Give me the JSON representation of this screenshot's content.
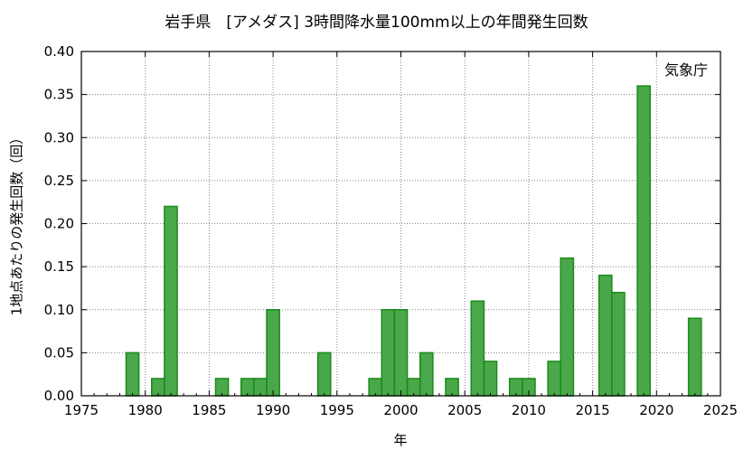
{
  "chart_data": {
    "type": "bar",
    "title": "岩手県　[アメダス] 3時間降水量100mm以上の年間発生回数",
    "xlabel": "年",
    "ylabel": "1地点あたりの発生回数（回）",
    "source_label": "気象庁",
    "xlim": [
      1975,
      2025
    ],
    "ylim": [
      0,
      0.4
    ],
    "x_ticks": [
      1975,
      1980,
      1985,
      1990,
      1995,
      2000,
      2005,
      2010,
      2015,
      2020,
      2025
    ],
    "y_ticks": [
      "0.00",
      "0.05",
      "0.10",
      "0.15",
      "0.20",
      "0.25",
      "0.30",
      "0.35",
      "0.40"
    ],
    "grid": true,
    "bar_color": "#4aa84a",
    "bar_edge_color": "#1a8a1a",
    "x": [
      1979,
      1981,
      1982,
      1986,
      1988,
      1989,
      1990,
      1994,
      1998,
      1999,
      2000,
      2001,
      2002,
      2004,
      2006,
      2007,
      2009,
      2010,
      2012,
      2013,
      2016,
      2017,
      2019,
      2023
    ],
    "values": [
      0.05,
      0.02,
      0.22,
      0.02,
      0.02,
      0.02,
      0.1,
      0.05,
      0.02,
      0.1,
      0.1,
      0.02,
      0.05,
      0.02,
      0.11,
      0.04,
      0.02,
      0.02,
      0.04,
      0.16,
      0.14,
      0.12,
      0.36,
      0.09
    ]
  }
}
